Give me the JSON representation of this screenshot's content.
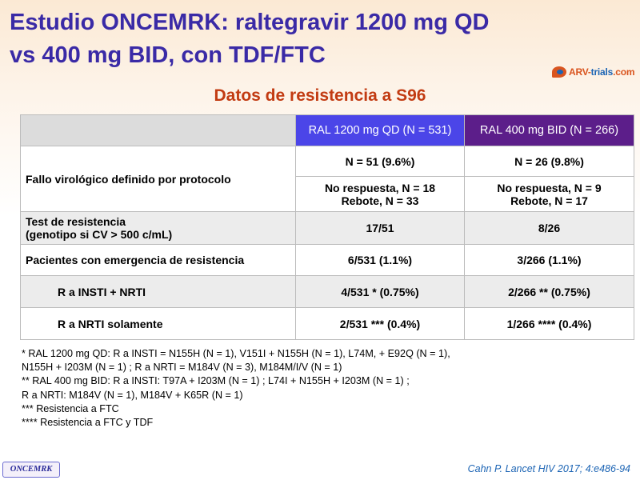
{
  "header": {
    "title_line1": "Estudio ONCEMRK: raltegravir 1200 mg QD",
    "title_line2": "vs 400 mg BID, con TDF/FTC",
    "logo_text_a": "ARV-",
    "logo_text_b": "trials",
    "logo_text_c": ".com"
  },
  "subtitle": "Datos de resistencia a S96",
  "table": {
    "columns": [
      "",
      "RAL 1200 mg QD (N = 531)",
      "RAL 400 mg BID (N = 266)"
    ],
    "rows": [
      {
        "label": "Fallo virológico definido por protocolo",
        "qd": "N = 51 (9.6%)",
        "bid": "N = 26 (9.8%)"
      },
      {
        "qd_line1": "No respuesta, N = 18",
        "qd_line2": "Rebote, N = 33",
        "bid_line1": "No respuesta, N = 9",
        "bid_line2": "Rebote, N = 17"
      },
      {
        "label_line1": "Test de resistencia",
        "label_line2": "(genotipo si CV > 500 c/mL)",
        "qd": "17/51",
        "bid": "8/26"
      },
      {
        "label": "Pacientes con emergencia de resistencia",
        "qd": "6/531 (1.1%)",
        "bid": "3/266 (1.1%)"
      },
      {
        "label": "R a INSTI + NRTI",
        "qd": "4/531 * (0.75%)",
        "bid": "2/266 ** (0.75%)"
      },
      {
        "label": "R a NRTI solamente",
        "qd": "2/531 *** (0.4%)",
        "bid": "1/266 **** (0.4%)"
      }
    ]
  },
  "notes": [
    "* RAL 1200 mg QD: R a INSTI = N155H (N = 1), V151I + N155H (N = 1), L74M, + E92Q (N = 1),",
    "N155H + I203M (N = 1) ; R a NRTI = M184V (N = 3), M184M/I/V (N = 1)",
    "** RAL 400 mg BID: R a INSTI: T97A + I203M (N = 1) ; L74I + N155H + I203M (N = 1) ;",
    "R a NRTI: M184V (N = 1), M184V + K65R (N = 1)",
    "*** Resistencia a FTC",
    "**** Resistencia a FTC y TDF"
  ],
  "footer": {
    "brand": "ONCEMRK",
    "citation": "Cahn P. Lancet HIV 2017; 4:e486-94"
  },
  "colors": {
    "title": "#3a2aa6",
    "subtitle": "#c23b12",
    "qd_header": "#4b45e8",
    "bid_header": "#5c1e8a",
    "citation": "#1c64b4"
  }
}
